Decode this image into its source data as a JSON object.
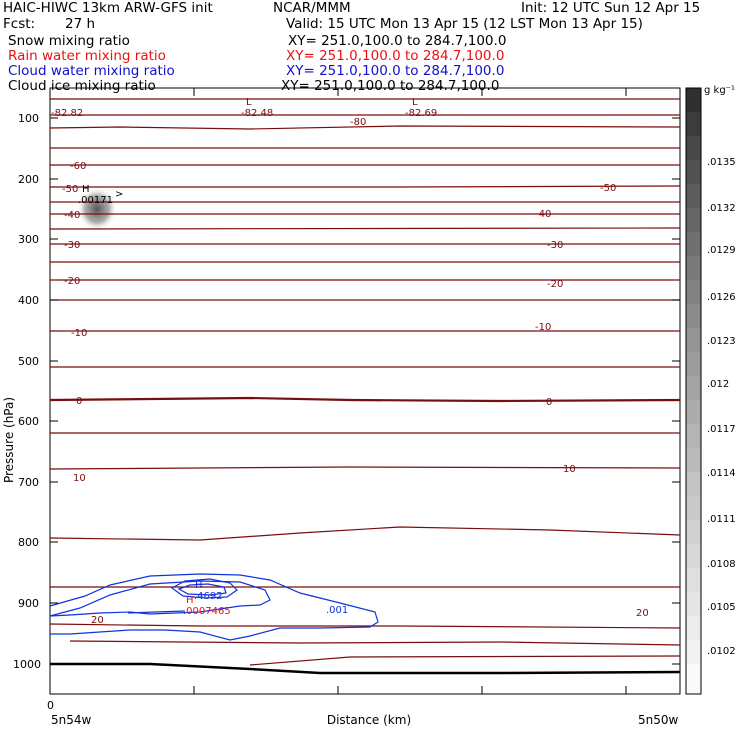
{
  "header": {
    "model": "HAIC-HIWC 13km ARW-GFS init",
    "org": "NCAR/MMM",
    "init": "Init: 12 UTC Sun 12 Apr 15",
    "fcst_label": "Fcst:",
    "fcst_value": "27 h",
    "valid": "Valid: 15 UTC Mon 13 Apr 15 (12 LST Mon 13 Apr 15)"
  },
  "fields": [
    {
      "name": "Snow mixing ratio",
      "xy": "XY= 251.0,100.0 to 284.7,100.0",
      "color": "#000000"
    },
    {
      "name": "Rain water mixing ratio",
      "xy": "XY= 251.0,100.0 to 284.7,100.0",
      "color": "#ee1111"
    },
    {
      "name": "Cloud water mixing ratio",
      "xy": "XY= 251.0,100.0 to 284.7,100.0",
      "color": "#1111cc"
    },
    {
      "name": "Cloud ice mixing ratio",
      "xy": "XY= 251.0,100.0 to 284.7,100.0",
      "color": "#000000"
    }
  ],
  "colors": {
    "temperature": "#7a0d0d",
    "cloud_water": "#1133dd",
    "rain_water": "#ee1111",
    "axis": "#000000"
  },
  "chart_data": {
    "type": "contour cross-section",
    "xlabel": "Distance (km)",
    "ylabel": "Pressure (hPa)",
    "x_tick_labels": [
      "0"
    ],
    "x_end_labels": [
      "5n54w",
      "5n50w"
    ],
    "y_scale": "log",
    "ylim": [
      1050,
      65
    ],
    "y_ticks": [
      100,
      200,
      300,
      400,
      500,
      600,
      700,
      800,
      900,
      1000
    ],
    "temperature_contours": {
      "levels": [
        -80,
        -70,
        -60,
        -50,
        -40,
        -30,
        -20,
        -10,
        0,
        10,
        20
      ],
      "labels": [
        {
          "text": "-82.82"
        },
        {
          "text": "L"
        },
        {
          "text": "-82.48"
        },
        {
          "text": "-80"
        },
        {
          "text": "L"
        },
        {
          "text": "-82.69"
        },
        {
          "text": "-60"
        },
        {
          "text": "-50"
        },
        {
          "text": "-50"
        },
        {
          "text": "-40"
        },
        {
          "text": "-40"
        },
        {
          "text": "-30"
        },
        {
          "text": "-30"
        },
        {
          "text": "-20"
        },
        {
          "text": "-20"
        },
        {
          "text": "-10"
        },
        {
          "text": "-10"
        },
        {
          "text": "0"
        },
        {
          "text": "0"
        },
        {
          "text": "10"
        },
        {
          "text": "10"
        },
        {
          "text": "20"
        },
        {
          "text": "20"
        }
      ]
    },
    "snow_max": {
      "marker": "H",
      "value": ".00171"
    },
    "cloud_water": {
      "marker": "H",
      "max": ".4692",
      "contour_label": ".001"
    },
    "rain_water": {
      "marker": "H",
      "max": ".0007465"
    },
    "colorbar": {
      "unit": "g kg⁻¹",
      "labels": [
        ".0135",
        ".0132",
        ".0129",
        ".0126",
        ".0123",
        ".012",
        ".0117",
        ".0114",
        ".0111",
        ".0108",
        ".0105",
        ".0102"
      ]
    }
  }
}
